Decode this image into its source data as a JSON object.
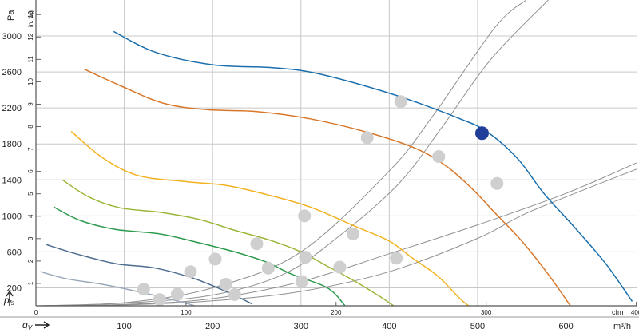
{
  "chart_data": {
    "type": "line",
    "title": "",
    "x_axis_primary": {
      "unit": "m³/h",
      "ticks": [
        100,
        200,
        300,
        400,
        500,
        600
      ],
      "range": [
        0,
        680
      ]
    },
    "x_axis_secondary": {
      "unit": "cfm",
      "ticks": [
        0,
        100,
        200,
        300,
        400
      ]
    },
    "y_axis_left": {
      "unit": "Pa",
      "ticks": [
        200,
        600,
        1000,
        1400,
        1800,
        2200,
        2600,
        3000
      ],
      "range": [
        0,
        3400
      ]
    },
    "y_axis_secondary": {
      "unit": "in. wg",
      "ticks": [
        1,
        2,
        3,
        4,
        5,
        6,
        7,
        8,
        9,
        10,
        11,
        12,
        13
      ]
    },
    "axis_symbols": {
      "y": "p",
      "y_sub": "fs",
      "x": "q",
      "x_sub": "V"
    },
    "grid": true,
    "series": [
      {
        "color": "#1a6fae",
        "points": [
          [
            88,
            3050
          ],
          [
            135,
            2820
          ],
          [
            200,
            2680
          ],
          [
            265,
            2650
          ],
          [
            310,
            2600
          ],
          [
            360,
            2480
          ],
          [
            420,
            2300
          ],
          [
            480,
            2080
          ],
          [
            510,
            1940
          ],
          [
            545,
            1640
          ],
          [
            575,
            1250
          ],
          [
            610,
            870
          ],
          [
            645,
            470
          ],
          [
            675,
            50
          ]
        ]
      },
      {
        "color": "#d8772a",
        "points": [
          [
            55,
            2630
          ],
          [
            95,
            2450
          ],
          [
            145,
            2250
          ],
          [
            195,
            2180
          ],
          [
            250,
            2160
          ],
          [
            310,
            2080
          ],
          [
            375,
            1930
          ],
          [
            430,
            1750
          ],
          [
            465,
            1550
          ],
          [
            495,
            1290
          ],
          [
            520,
            1030
          ],
          [
            550,
            720
          ],
          [
            580,
            350
          ],
          [
            605,
            0
          ]
        ]
      },
      {
        "color": "#f2b21f",
        "points": [
          [
            40,
            1940
          ],
          [
            75,
            1650
          ],
          [
            115,
            1450
          ],
          [
            170,
            1380
          ],
          [
            215,
            1340
          ],
          [
            260,
            1240
          ],
          [
            310,
            1100
          ],
          [
            360,
            890
          ],
          [
            400,
            720
          ],
          [
            425,
            540
          ],
          [
            455,
            330
          ],
          [
            480,
            80
          ],
          [
            490,
            0
          ]
        ]
      },
      {
        "color": "#9ab636",
        "points": [
          [
            30,
            1400
          ],
          [
            60,
            1210
          ],
          [
            95,
            1090
          ],
          [
            140,
            1040
          ],
          [
            185,
            960
          ],
          [
            225,
            840
          ],
          [
            265,
            730
          ],
          [
            300,
            600
          ],
          [
            330,
            440
          ],
          [
            360,
            280
          ],
          [
            390,
            100
          ],
          [
            405,
            0
          ]
        ]
      },
      {
        "color": "#2e9a4e",
        "points": [
          [
            20,
            1100
          ],
          [
            50,
            950
          ],
          [
            90,
            850
          ],
          [
            140,
            800
          ],
          [
            185,
            700
          ],
          [
            225,
            600
          ],
          [
            260,
            490
          ],
          [
            290,
            350
          ],
          [
            330,
            200
          ],
          [
            350,
            0
          ]
        ]
      },
      {
        "color": "#4c6d8f",
        "points": [
          [
            12,
            680
          ],
          [
            45,
            580
          ],
          [
            90,
            470
          ],
          [
            135,
            420
          ],
          [
            180,
            300
          ],
          [
            215,
            160
          ],
          [
            245,
            20
          ]
        ]
      },
      {
        "color": "#98a8b8",
        "points": [
          [
            5,
            380
          ],
          [
            35,
            300
          ],
          [
            75,
            240
          ],
          [
            110,
            170
          ],
          [
            150,
            80
          ],
          [
            180,
            0
          ]
        ]
      }
    ],
    "system_curves": [
      {
        "color": "#909090",
        "points": [
          [
            0,
            0
          ],
          [
            100,
            35
          ],
          [
            200,
            200
          ],
          [
            300,
            600
          ],
          [
            400,
            1500
          ],
          [
            450,
            2120
          ],
          [
            520,
            3100
          ],
          [
            555,
            3400
          ]
        ]
      },
      {
        "color": "#909090",
        "points": [
          [
            0,
            0
          ],
          [
            100,
            30
          ],
          [
            200,
            120
          ],
          [
            280,
            350
          ],
          [
            340,
            750
          ],
          [
            410,
            1350
          ],
          [
            460,
            1990
          ],
          [
            515,
            2740
          ],
          [
            580,
            3400
          ]
        ]
      },
      {
        "color": "#909090",
        "points": [
          [
            0,
            0
          ],
          [
            100,
            15
          ],
          [
            200,
            80
          ],
          [
            300,
            270
          ],
          [
            400,
            580
          ],
          [
            500,
            900
          ],
          [
            600,
            1250
          ],
          [
            680,
            1590
          ]
        ]
      },
      {
        "color": "#909090",
        "points": [
          [
            0,
            0
          ],
          [
            100,
            10
          ],
          [
            200,
            55
          ],
          [
            300,
            160
          ],
          [
            400,
            380
          ],
          [
            500,
            750
          ],
          [
            560,
            1050
          ],
          [
            680,
            1520
          ]
        ]
      }
    ],
    "operating_points_gray": [
      [
        413,
        2270
      ],
      [
        375,
        1870
      ],
      [
        456,
        1660
      ],
      [
        304,
        1000
      ],
      [
        359,
        800
      ],
      [
        522,
        1360
      ],
      [
        250,
        690
      ],
      [
        305,
        540
      ],
      [
        203,
        520
      ],
      [
        263,
        420
      ],
      [
        344,
        430
      ],
      [
        175,
        380
      ],
      [
        215,
        240
      ],
      [
        301,
        270
      ],
      [
        122,
        185
      ],
      [
        140,
        70
      ],
      [
        225,
        125
      ],
      [
        160,
        130
      ],
      [
        408,
        530
      ]
    ],
    "operating_points_highlight": [
      [
        505,
        1920
      ]
    ]
  }
}
